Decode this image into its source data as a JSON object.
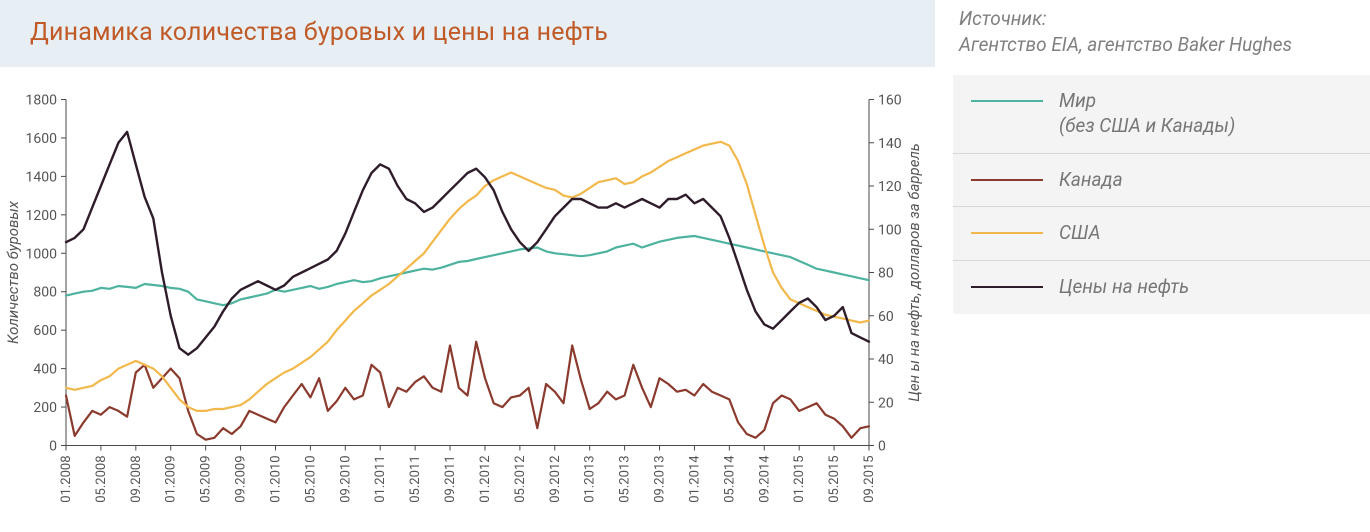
{
  "title": "Динамика количества буровых и цены на нефть",
  "source": {
    "label": "Источник:",
    "text": "Агентство EIA, агентство Baker Hughes"
  },
  "legend": [
    {
      "label": "Мир\n(без США и Канады)",
      "color": "#4db39e"
    },
    {
      "label": "Канада",
      "color": "#8b3a2e"
    },
    {
      "label": "США",
      "color": "#f2b84b"
    },
    {
      "label": "Цены на нефть",
      "color": "#2f1c2b"
    }
  ],
  "chart": {
    "plot_bg": "#ffffff",
    "axis_color": "#4a4a4a",
    "grid_color": "#dcdcdc",
    "axis_title_left": "Количество буровых",
    "axis_title_right": "Цен ы на нефть, долларов за баррель",
    "y_left": {
      "min": 0,
      "max": 1800,
      "step": 200
    },
    "y_right": {
      "min": 0,
      "max": 160,
      "step": 20
    },
    "x_labels": [
      "01.2008",
      "05.2008",
      "09.2008",
      "01.2009",
      "05.2009",
      "09.2009",
      "01.2010",
      "05.2010",
      "09.2010",
      "01.2011",
      "05.2011",
      "09.2011",
      "01.2012",
      "05.2012",
      "09.2012",
      "01.2013",
      "05.2013",
      "09.2013",
      "01.2014",
      "05.2014",
      "09.2014",
      "01.2015",
      "05.2015",
      "09.2015"
    ],
    "series": {
      "world": {
        "color": "#4db39e",
        "width": 2.2,
        "axis": "left",
        "values": [
          780,
          790,
          800,
          805,
          820,
          815,
          830,
          825,
          820,
          840,
          835,
          830,
          820,
          815,
          800,
          760,
          750,
          740,
          730,
          740,
          760,
          770,
          780,
          790,
          810,
          800,
          810,
          820,
          830,
          815,
          825,
          840,
          850,
          860,
          850,
          855,
          870,
          880,
          890,
          900,
          910,
          920,
          915,
          925,
          940,
          955,
          960,
          970,
          980,
          990,
          1000,
          1010,
          1020,
          1025,
          1030,
          1010,
          1000,
          995,
          990,
          985,
          990,
          1000,
          1010,
          1030,
          1040,
          1050,
          1030,
          1045,
          1060,
          1070,
          1080,
          1085,
          1090,
          1080,
          1070,
          1060,
          1050,
          1040,
          1030,
          1020,
          1010,
          1000,
          990,
          980,
          960,
          940,
          920,
          910,
          900,
          890,
          880,
          870,
          860
        ]
      },
      "canada": {
        "color": "#8b3a2e",
        "width": 2.2,
        "axis": "left",
        "values": [
          260,
          50,
          120,
          180,
          160,
          200,
          180,
          150,
          380,
          420,
          300,
          350,
          400,
          350,
          180,
          60,
          30,
          40,
          90,
          60,
          100,
          180,
          160,
          140,
          120,
          200,
          260,
          320,
          250,
          350,
          180,
          230,
          300,
          240,
          260,
          420,
          380,
          200,
          300,
          280,
          330,
          360,
          300,
          280,
          520,
          300,
          260,
          540,
          350,
          220,
          200,
          250,
          260,
          300,
          90,
          320,
          280,
          220,
          520,
          340,
          190,
          220,
          280,
          240,
          260,
          420,
          300,
          200,
          350,
          320,
          280,
          290,
          260,
          320,
          280,
          260,
          240,
          120,
          60,
          40,
          80,
          220,
          260,
          240,
          180,
          200,
          220,
          160,
          140,
          100,
          40,
          90,
          100
        ]
      },
      "usa": {
        "color": "#f2b84b",
        "width": 2.2,
        "axis": "left",
        "values": [
          300,
          290,
          300,
          310,
          340,
          360,
          400,
          420,
          440,
          420,
          400,
          360,
          300,
          240,
          200,
          180,
          180,
          190,
          190,
          200,
          210,
          240,
          280,
          320,
          350,
          380,
          400,
          430,
          460,
          500,
          540,
          600,
          650,
          700,
          740,
          780,
          810,
          840,
          880,
          920,
          960,
          1000,
          1060,
          1120,
          1180,
          1230,
          1270,
          1300,
          1350,
          1380,
          1400,
          1420,
          1400,
          1380,
          1360,
          1340,
          1330,
          1300,
          1290,
          1310,
          1340,
          1370,
          1380,
          1390,
          1360,
          1370,
          1400,
          1420,
          1450,
          1480,
          1500,
          1520,
          1540,
          1560,
          1570,
          1580,
          1560,
          1480,
          1360,
          1200,
          1040,
          900,
          820,
          760,
          740,
          720,
          700,
          680,
          670,
          660,
          650,
          640,
          650
        ]
      },
      "oil_price": {
        "color": "#2f1c2b",
        "width": 2.4,
        "axis": "right",
        "values": [
          94,
          96,
          100,
          110,
          120,
          130,
          140,
          145,
          130,
          115,
          105,
          80,
          60,
          45,
          42,
          45,
          50,
          55,
          62,
          68,
          72,
          74,
          76,
          74,
          72,
          74,
          78,
          80,
          82,
          84,
          86,
          90,
          98,
          108,
          118,
          126,
          130,
          128,
          120,
          114,
          112,
          108,
          110,
          114,
          118,
          122,
          126,
          128,
          124,
          118,
          108,
          100,
          94,
          90,
          94,
          100,
          106,
          110,
          114,
          114,
          112,
          110,
          110,
          112,
          110,
          112,
          114,
          112,
          110,
          114,
          114,
          116,
          112,
          114,
          110,
          106,
          96,
          84,
          72,
          62,
          56,
          54,
          58,
          62,
          66,
          68,
          64,
          58,
          60,
          64,
          52,
          50,
          48
        ]
      }
    }
  }
}
